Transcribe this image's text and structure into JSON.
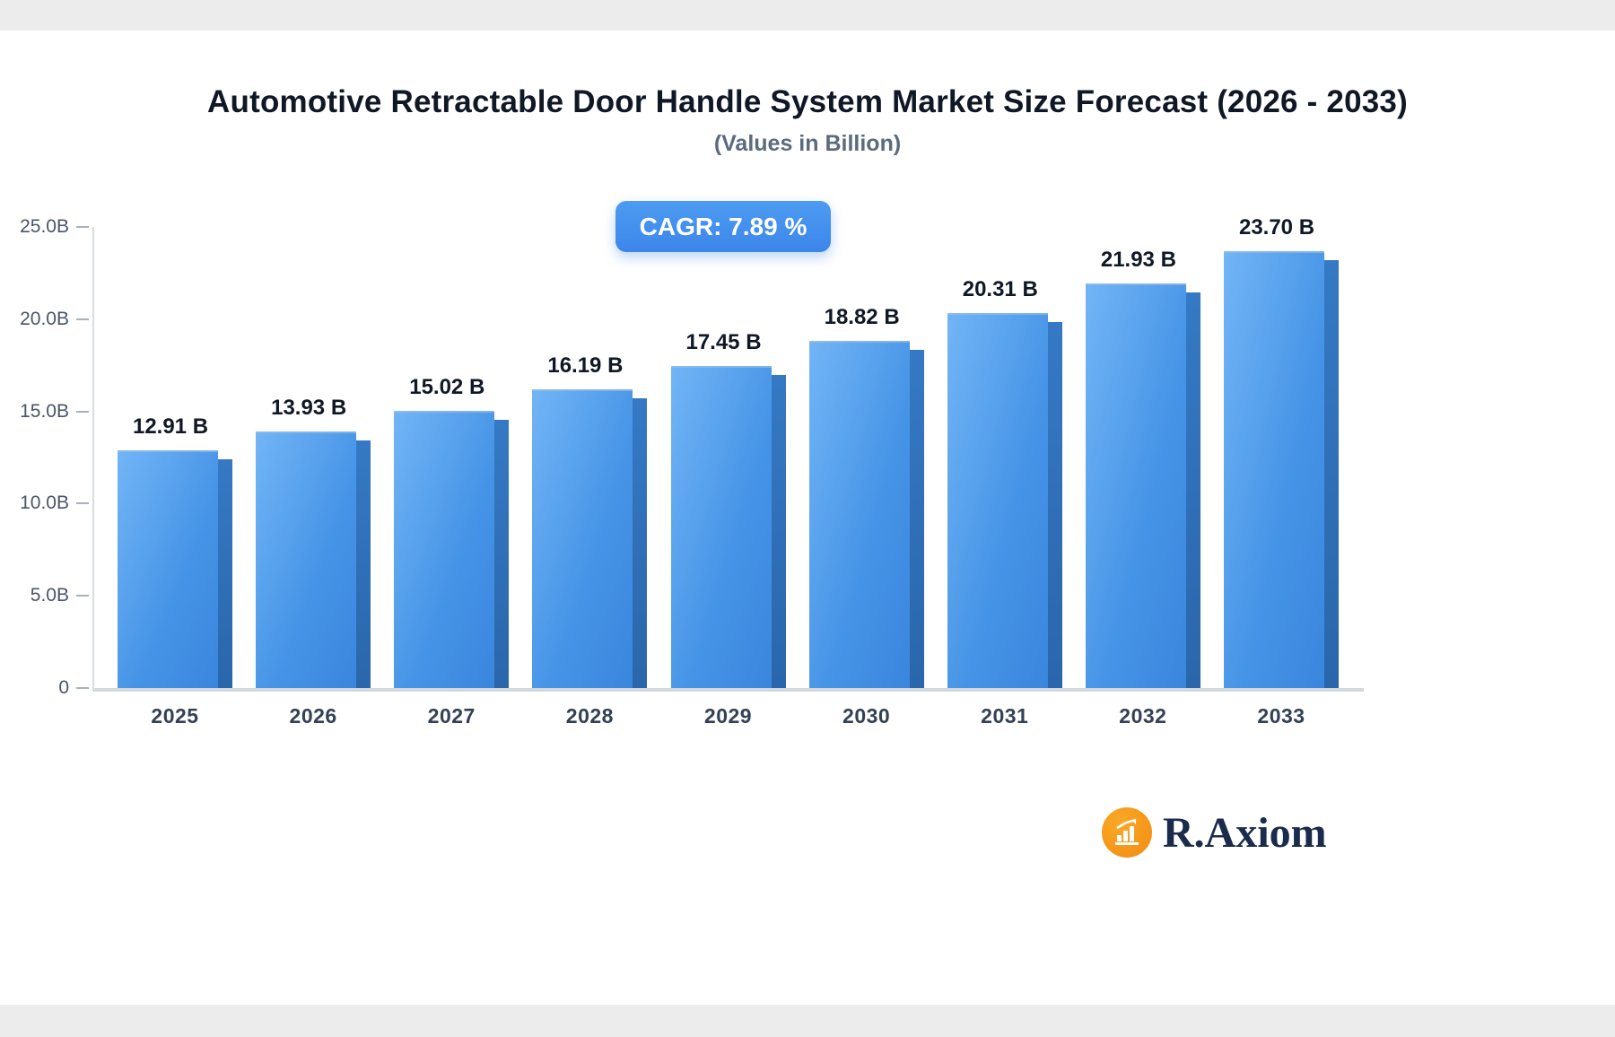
{
  "page": {
    "cagr_label": "CAGR: 7.89 %",
    "brand": {
      "name": "R.Axiom"
    }
  },
  "colors": {
    "bar_top": "#72b5f6",
    "bar_bottom": "#3a86de",
    "bar_side": "#2a66ab",
    "badge_blue": "#3c86ea",
    "brand_orange": "#f28c13",
    "brand_navy": "#1a2b4c",
    "title_text": "#101826",
    "subtitle_text": "#5b6b7e",
    "axis_text": "#4a5568"
  },
  "chart_data": {
    "type": "bar",
    "title": "Automotive Retractable Door Handle System Market Size Forecast (2026 - 2033)",
    "subtitle": "(Values in Billion)",
    "annotation": "CAGR: 7.89 %",
    "categories": [
      "2025",
      "2026",
      "2027",
      "2028",
      "2029",
      "2030",
      "2031",
      "2032",
      "2033"
    ],
    "values": [
      12.91,
      13.93,
      15.02,
      16.19,
      17.45,
      18.82,
      20.31,
      21.93,
      23.7
    ],
    "value_labels": [
      "12.91 B",
      "13.93 B",
      "15.02 B",
      "16.19 B",
      "17.45 B",
      "18.82 B",
      "20.31 B",
      "21.93 B",
      "23.70 B"
    ],
    "xlabel": "",
    "ylabel": "",
    "ylim": [
      0,
      25
    ],
    "grid": false,
    "legend": false,
    "yticks": [
      {
        "value": 0,
        "label": "0"
      },
      {
        "value": 5,
        "label": "5.0B"
      },
      {
        "value": 10,
        "label": "10.0B"
      },
      {
        "value": 15,
        "label": "15.0B"
      },
      {
        "value": 20,
        "label": "20.0B"
      },
      {
        "value": 25,
        "label": "25.0B"
      }
    ]
  }
}
